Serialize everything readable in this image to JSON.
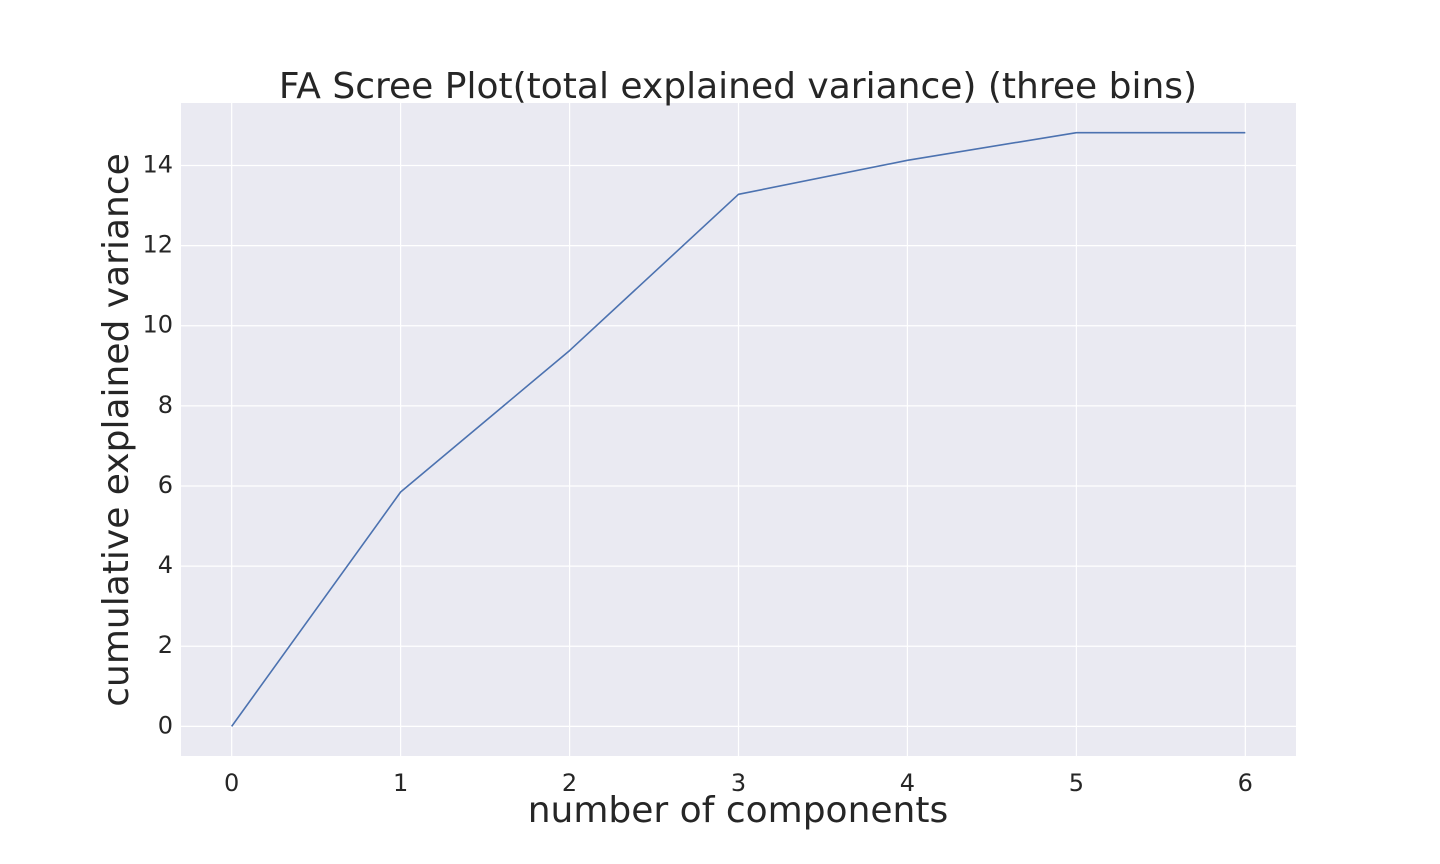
{
  "chart_data": {
    "type": "line",
    "title": "FA Scree Plot(total explained variance) (three bins)",
    "xlabel": "number of components",
    "ylabel": "cumulative explained variance",
    "x": [
      0,
      1,
      2,
      3,
      4,
      5,
      6
    ],
    "series": [
      {
        "values": [
          0,
          5.85,
          9.38,
          13.28,
          14.13,
          14.82,
          14.82
        ]
      }
    ],
    "xticks": [
      "0",
      "1",
      "2",
      "3",
      "4",
      "5",
      "6"
    ],
    "yticks": [
      "0",
      "2",
      "4",
      "6",
      "8",
      "10",
      "12",
      "14"
    ],
    "xlim": [
      -0.3,
      6.3
    ],
    "ylim": [
      -0.74,
      15.56
    ],
    "grid": true,
    "legend": "none",
    "colors": {
      "background": "#eaeaf2",
      "grid": "#ffffff",
      "line": "#4c72b0",
      "text": "#262626"
    }
  }
}
